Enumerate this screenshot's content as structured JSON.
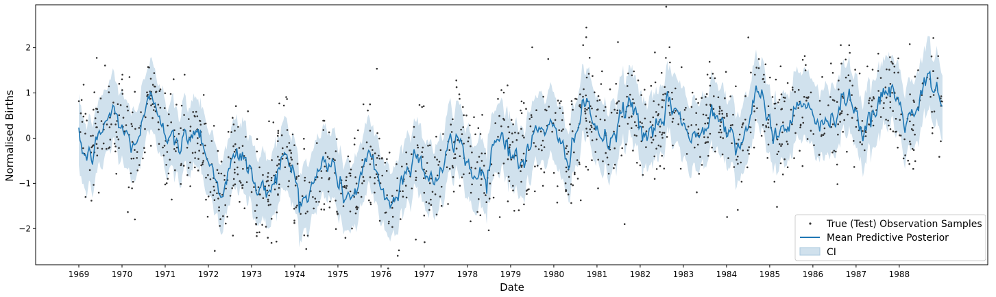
{
  "chart_data": {
    "type": "line",
    "title": "",
    "xlabel": "Date",
    "ylabel": "Normalised Births",
    "xlim": [
      1968.0,
      1990.05
    ],
    "ylim": [
      -2.8,
      2.95
    ],
    "x_ticks": [
      "1969",
      "1970",
      "1971",
      "1972",
      "1973",
      "1974",
      "1975",
      "1976",
      "1977",
      "1978",
      "1979",
      "1980",
      "1981",
      "1982",
      "1983",
      "1984",
      "1985",
      "1986",
      "1987",
      "1988"
    ],
    "y_ticks": [
      -2,
      -1,
      0,
      1,
      2
    ],
    "grid": false,
    "legend_position": "lower-right",
    "legend": {
      "observations": "True (Test) Observation Samples",
      "mean": "Mean Predictive Posterior",
      "ci": "CI"
    },
    "colors": {
      "mean": "#1f77b4",
      "ci_fill": "#aac8de",
      "points": "#333333"
    },
    "series": [
      {
        "name": "Mean Predictive Posterior",
        "x_start": 1969.0,
        "x_end": 1989.0,
        "trend": [
          [
            1969,
            -0.1
          ],
          [
            1970.7,
            0.45
          ],
          [
            1971.5,
            0.05
          ],
          [
            1972.3,
            -0.7
          ],
          [
            1973.2,
            -0.85
          ],
          [
            1974.2,
            -0.9
          ],
          [
            1975.3,
            -0.9
          ],
          [
            1976.3,
            -1.05
          ],
          [
            1977.2,
            -0.5
          ],
          [
            1978.3,
            -0.45
          ],
          [
            1979.3,
            -0.15
          ],
          [
            1980.5,
            0.15
          ],
          [
            1981.5,
            0.3
          ],
          [
            1982.5,
            0.35
          ],
          [
            1983.5,
            0.3
          ],
          [
            1984.5,
            0.35
          ],
          [
            1985.5,
            0.5
          ],
          [
            1986.5,
            0.6
          ],
          [
            1987.5,
            0.6
          ],
          [
            1988.5,
            0.85
          ],
          [
            1989,
            0.7
          ]
        ],
        "seasonal_amplitude": 0.4,
        "seasonal_peak_month": 9
      },
      {
        "name": "CI",
        "half_width": 0.75
      },
      {
        "name": "True (Test) Observation Samples",
        "count": 1400,
        "noise_sd": 0.65
      }
    ]
  }
}
